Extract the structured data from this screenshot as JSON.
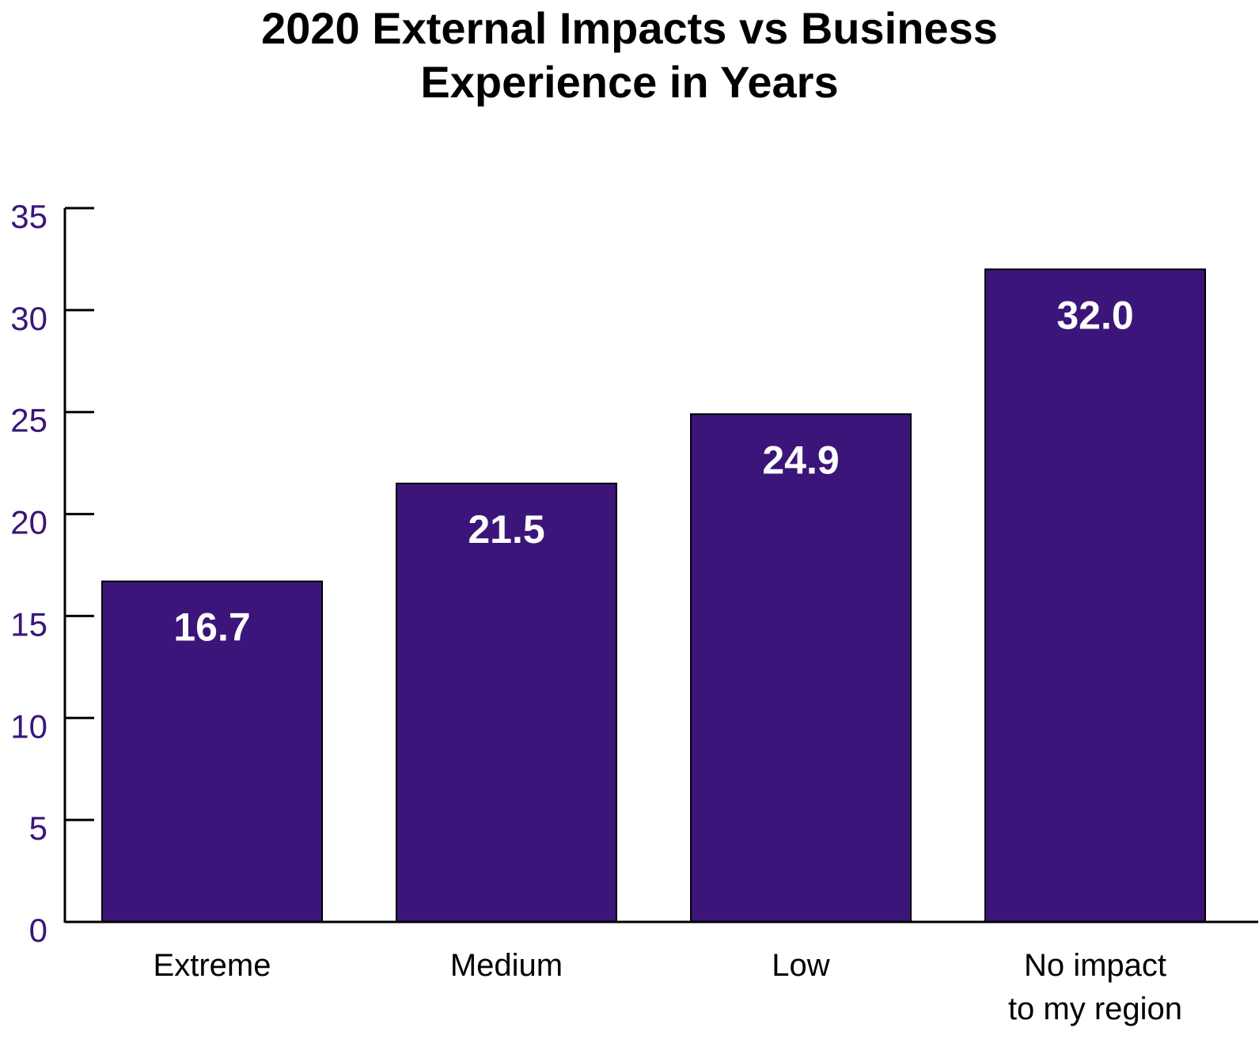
{
  "chart_data": {
    "type": "bar",
    "title_lines": [
      "2020 External Impacts vs Business",
      "Experience in Years"
    ],
    "categories": [
      [
        "Extreme"
      ],
      [
        "Medium"
      ],
      [
        "Low"
      ],
      [
        "No impact",
        "to my region"
      ]
    ],
    "values": [
      16.7,
      21.5,
      24.9,
      32.0
    ],
    "value_labels": [
      "16.7",
      "21.5",
      "24.9",
      "32.0"
    ],
    "y_ticks": [
      "0",
      "5",
      "10",
      "15",
      "20",
      "25",
      "30",
      "35"
    ],
    "ylim": [
      0,
      35
    ],
    "xlabel": "",
    "ylabel": "",
    "grid": false,
    "legend": "none",
    "colors": {
      "bar": "#3b157a",
      "tick_label": "#3b157a",
      "value_label": "#ffffff",
      "axis": "#000000"
    }
  }
}
